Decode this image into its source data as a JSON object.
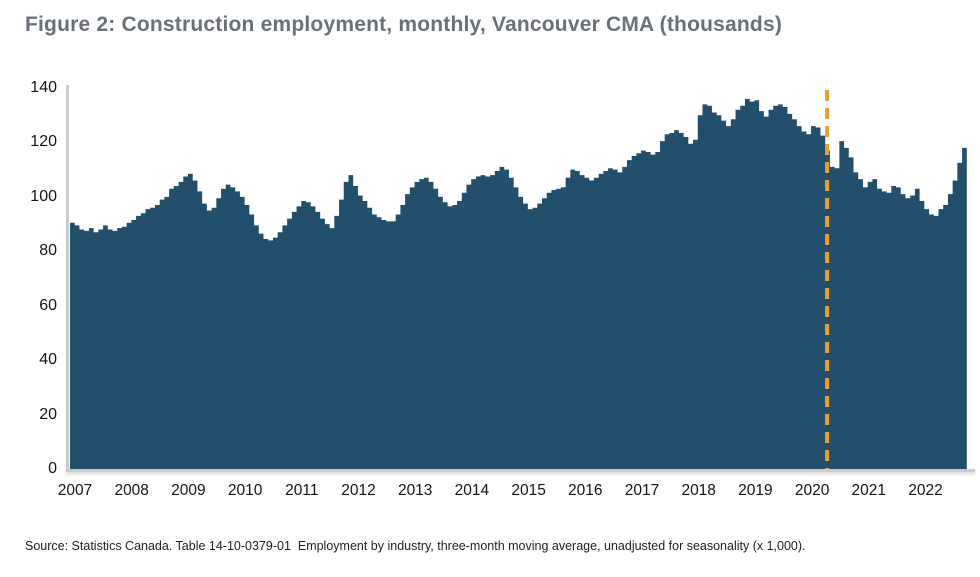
{
  "figure": {
    "title": "Figure 2: Construction employment, monthly, Vancouver CMA (thousands)",
    "source": "Source: Statistics Canada. Table 14-10-0379-01  Employment by industry, three-month moving average, unadjusted for seasonality (x 1,000)."
  },
  "chart_data": {
    "type": "bar",
    "title": "Construction employment, monthly, Vancouver CMA (thousands)",
    "xlabel": "",
    "ylabel": "",
    "x_start": "2007-01",
    "frequency": "monthly",
    "x_tick_labels": [
      "2007",
      "2008",
      "2009",
      "2010",
      "2011",
      "2012",
      "2013",
      "2014",
      "2015",
      "2016",
      "2017",
      "2018",
      "2019",
      "2020",
      "2021",
      "2022"
    ],
    "y_ticks": [
      0,
      20,
      40,
      60,
      80,
      100,
      120,
      140
    ],
    "ylim": [
      0,
      140
    ],
    "grid": false,
    "legend": "none",
    "bar_color": "#22506C",
    "series_name": "Construction employment (thousands)",
    "values": [
      90.5,
      89.5,
      88,
      87.5,
      88.5,
      87,
      88,
      89.5,
      88,
      87.5,
      88.5,
      89,
      90.5,
      91.5,
      93,
      94,
      95.5,
      96,
      97,
      99,
      100,
      103,
      104,
      105.5,
      107.5,
      108.5,
      106,
      102,
      97.5,
      95,
      96,
      99.5,
      103,
      104.5,
      103.5,
      102,
      100,
      97,
      93.5,
      89.5,
      86.5,
      84.5,
      84,
      85,
      87,
      89.5,
      92,
      94.5,
      96.5,
      98.5,
      98,
      96.5,
      94.5,
      92,
      90,
      88.5,
      93,
      99,
      105.5,
      108,
      104,
      100.5,
      98.5,
      96,
      93.5,
      92.5,
      91.5,
      91,
      91,
      93.5,
      97,
      101,
      103.5,
      105.5,
      106.5,
      107,
      105.5,
      103,
      100,
      98,
      96.5,
      97,
      98.5,
      101.5,
      104.5,
      106.5,
      107.5,
      108,
      107.5,
      108,
      109.5,
      111,
      110,
      107,
      103.5,
      100,
      97.5,
      95.5,
      96,
      97.5,
      99.5,
      101.5,
      102.5,
      103,
      103.5,
      107,
      110,
      109.5,
      108,
      107,
      106,
      107,
      108.5,
      109.5,
      110.5,
      110,
      109,
      111,
      113.5,
      115,
      116,
      117,
      116.5,
      115.5,
      116.5,
      120.5,
      123,
      123.5,
      124.5,
      123.5,
      122,
      119.5,
      121,
      130,
      134,
      133.5,
      131,
      130,
      128,
      126,
      128.5,
      132,
      133.5,
      136,
      135,
      135.5,
      131.5,
      129.5,
      132,
      133.5,
      134,
      133,
      130.5,
      128.5,
      126,
      124,
      123,
      126,
      125.5,
      122.5,
      117,
      111,
      110.5,
      120.5,
      118,
      114.5,
      109,
      106.5,
      103.5,
      105.5,
      106.5,
      103,
      102,
      101.5,
      104,
      103.5,
      101,
      99.5,
      100.5,
      103,
      98.5,
      95.5,
      93.5,
      93,
      95.5,
      97,
      101,
      106,
      112.5,
      118
    ],
    "annotation_line": {
      "x": "2020-05",
      "month_index": 160.4,
      "style": "dashed",
      "color": "#E79E33",
      "orientation": "vertical"
    }
  }
}
